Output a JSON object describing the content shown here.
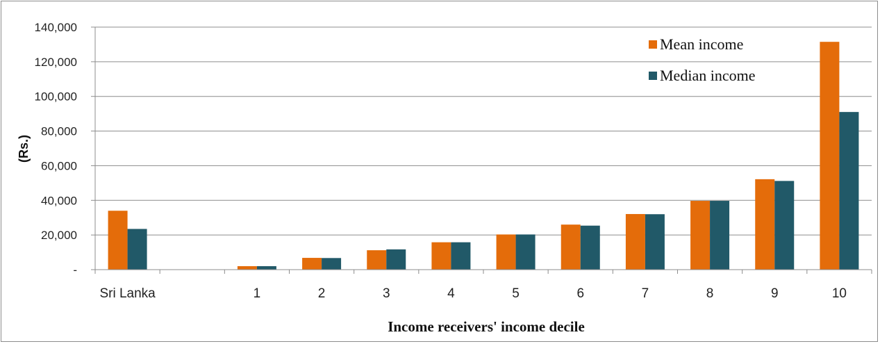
{
  "chart_data": {
    "type": "bar",
    "categories": [
      "Sri Lanka",
      "",
      "1",
      "2",
      "3",
      "4",
      "5",
      "6",
      "7",
      "8",
      "9",
      "10"
    ],
    "series": [
      {
        "name": "Mean income",
        "color": "#E46C0A",
        "values": [
          34000,
          null,
          2000,
          6800,
          11200,
          15800,
          20300,
          26000,
          32100,
          39700,
          52200,
          131500
        ]
      },
      {
        "name": "Median income",
        "color": "#215968",
        "values": [
          23500,
          null,
          2000,
          6700,
          11700,
          15800,
          20300,
          25400,
          32000,
          39700,
          51200,
          91000
        ]
      }
    ],
    "ylim": [
      0,
      140000
    ],
    "yticks": [
      {
        "value": 0,
        "label": "-"
      },
      {
        "value": 20000,
        "label": "20,000"
      },
      {
        "value": 40000,
        "label": "40,000"
      },
      {
        "value": 60000,
        "label": "60,000"
      },
      {
        "value": 80000,
        "label": "80,000"
      },
      {
        "value": 100000,
        "label": "100,000"
      },
      {
        "value": 120000,
        "label": "120,000"
      },
      {
        "value": 140000,
        "label": "140,000"
      }
    ],
    "xlabel": "Income receivers' income decile",
    "ylabel": "(Rs.)",
    "grid": true,
    "legend_position": "top-right"
  }
}
